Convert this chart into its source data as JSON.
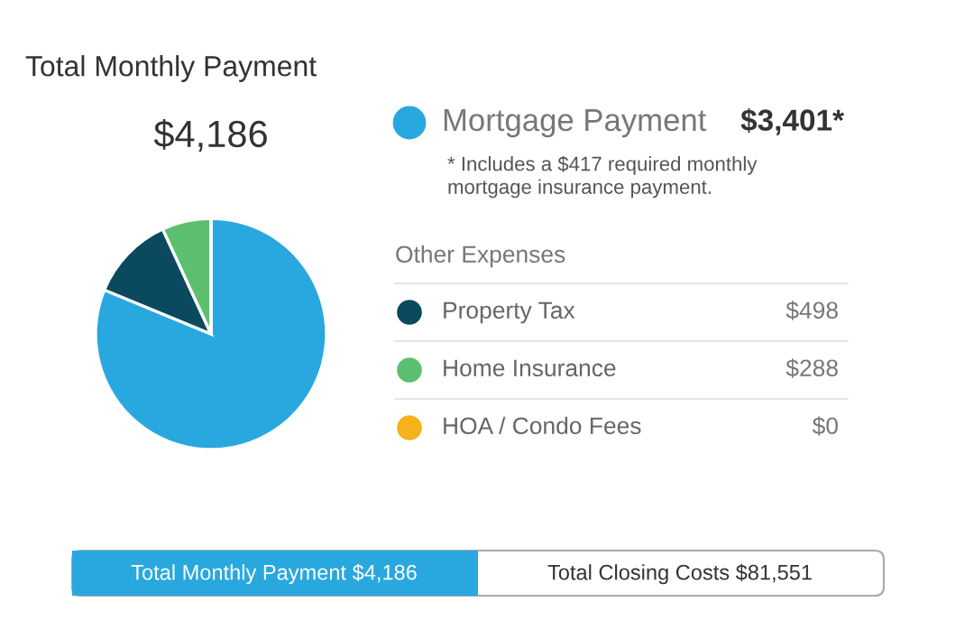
{
  "chart_data": {
    "type": "pie",
    "title": "Total Monthly Payment",
    "categories": [
      "Mortgage Payment",
      "Property Tax",
      "Home Insurance",
      "HOA / Condo Fees"
    ],
    "values": [
      3401,
      498,
      288,
      0
    ],
    "colors": [
      "#29a8e0",
      "#0b4a5e",
      "#5cbf6f",
      "#f5b21b"
    ],
    "value_labels": [
      "$3,401*",
      "$498",
      "$288",
      "$0"
    ],
    "legend": "right",
    "annotations": [
      "$4,186",
      "* Includes a $417 required monthly\nmortgage insurance payment.",
      "Other Expenses",
      "Total Monthly Payment $4,186",
      "Total Closing Costs $81,551"
    ]
  }
}
